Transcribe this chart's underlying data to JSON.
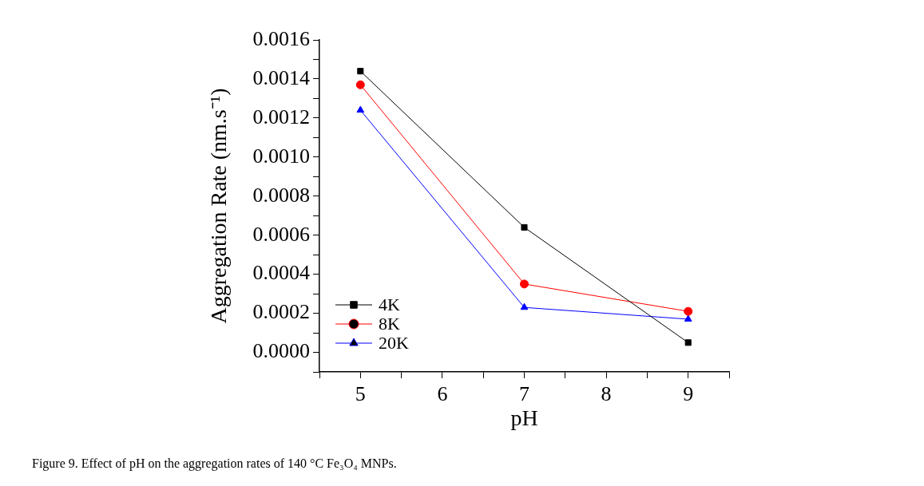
{
  "chart_data": {
    "type": "line",
    "xlabel": "pH",
    "ylabel": "Aggregation Rate (nm.s⁻¹)",
    "annotations": [
      "Figure 9. Effect of pH on the aggregation rates of 140 °C Fe₃O₄ MNPs."
    ],
    "x": [
      5,
      7,
      9
    ],
    "series": [
      {
        "name": "4K",
        "color": "#000000",
        "marker": "square",
        "values": [
          0.00144,
          0.00064,
          5e-05
        ]
      },
      {
        "name": "8K",
        "color": "#ff0000",
        "marker": "circle",
        "values": [
          0.00137,
          0.00035,
          0.00021
        ]
      },
      {
        "name": "20K",
        "color": "#0000ff",
        "marker": "triangle",
        "values": [
          0.00124,
          0.00023,
          0.00017
        ]
      }
    ],
    "xlim": [
      4.5,
      9.5
    ],
    "xticks": [
      {
        "value": 4.5,
        "label": null
      },
      5,
      {
        "value": 5.5,
        "label": null
      },
      6,
      {
        "value": 6.5,
        "label": null
      },
      7,
      {
        "value": 7.5,
        "label": null
      },
      8,
      {
        "value": 8.5,
        "label": null
      },
      9,
      {
        "value": 9.5,
        "label": null
      }
    ],
    "ylim": [
      -0.0001,
      0.0016
    ],
    "yticks": [
      {
        "value": -0.0001,
        "label": null
      },
      {
        "value": 0,
        "label": "0.0000"
      },
      {
        "value": 0.0001,
        "label": null
      },
      {
        "value": 0.0002,
        "label": "0.0002"
      },
      {
        "value": 0.0003,
        "label": null
      },
      {
        "value": 0.0004,
        "label": "0.0004"
      },
      {
        "value": 0.0005,
        "label": null
      },
      {
        "value": 0.0006,
        "label": "0.0006"
      },
      {
        "value": 0.0007,
        "label": null
      },
      {
        "value": 0.0008,
        "label": "0.0008"
      },
      {
        "value": 0.0009,
        "label": null
      },
      {
        "value": 0.001,
        "label": "0.0010"
      },
      {
        "value": 0.0011,
        "label": null
      },
      {
        "value": 0.0012,
        "label": "0.0012"
      },
      {
        "value": 0.0013,
        "label": null
      },
      {
        "value": 0.0014,
        "label": "0.0014"
      },
      {
        "value": 0.0015,
        "label": null
      },
      {
        "value": 0.0016,
        "label": "0.0016"
      }
    ],
    "grid": false,
    "legend": "bottom left",
    "line_style": "solid"
  }
}
